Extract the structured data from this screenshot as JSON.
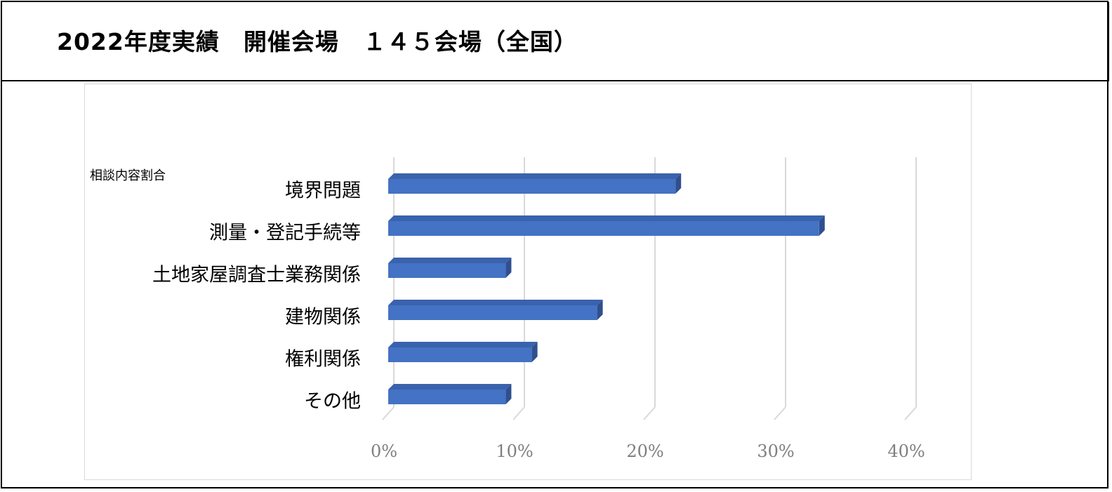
{
  "header": {
    "title": "2022年度実績　開催会場　１４５会場（全国）"
  },
  "chart_data": {
    "type": "bar",
    "orientation": "horizontal",
    "style": "3d",
    "title": "相談内容割合",
    "categories": [
      "境界問題",
      "測量・登記手続等",
      "土地家屋調査士業務関係",
      "建物関係",
      "権利関係",
      "その他"
    ],
    "series": [
      {
        "values": [
          0.22,
          0.33,
          0.09,
          0.16,
          0.11,
          0.09
        ]
      }
    ],
    "x_ticks": [
      "0%",
      "10%",
      "20%",
      "30%",
      "40%"
    ],
    "xlim": [
      0,
      0.4
    ],
    "grid": true,
    "legend": "none",
    "colors": {
      "bar": "#4472c4",
      "bar_top": "#3a62ad",
      "bar_side": "#2f4f8f",
      "gridline": "#d9d9d9",
      "tick_text": "#7f7f7f"
    }
  }
}
